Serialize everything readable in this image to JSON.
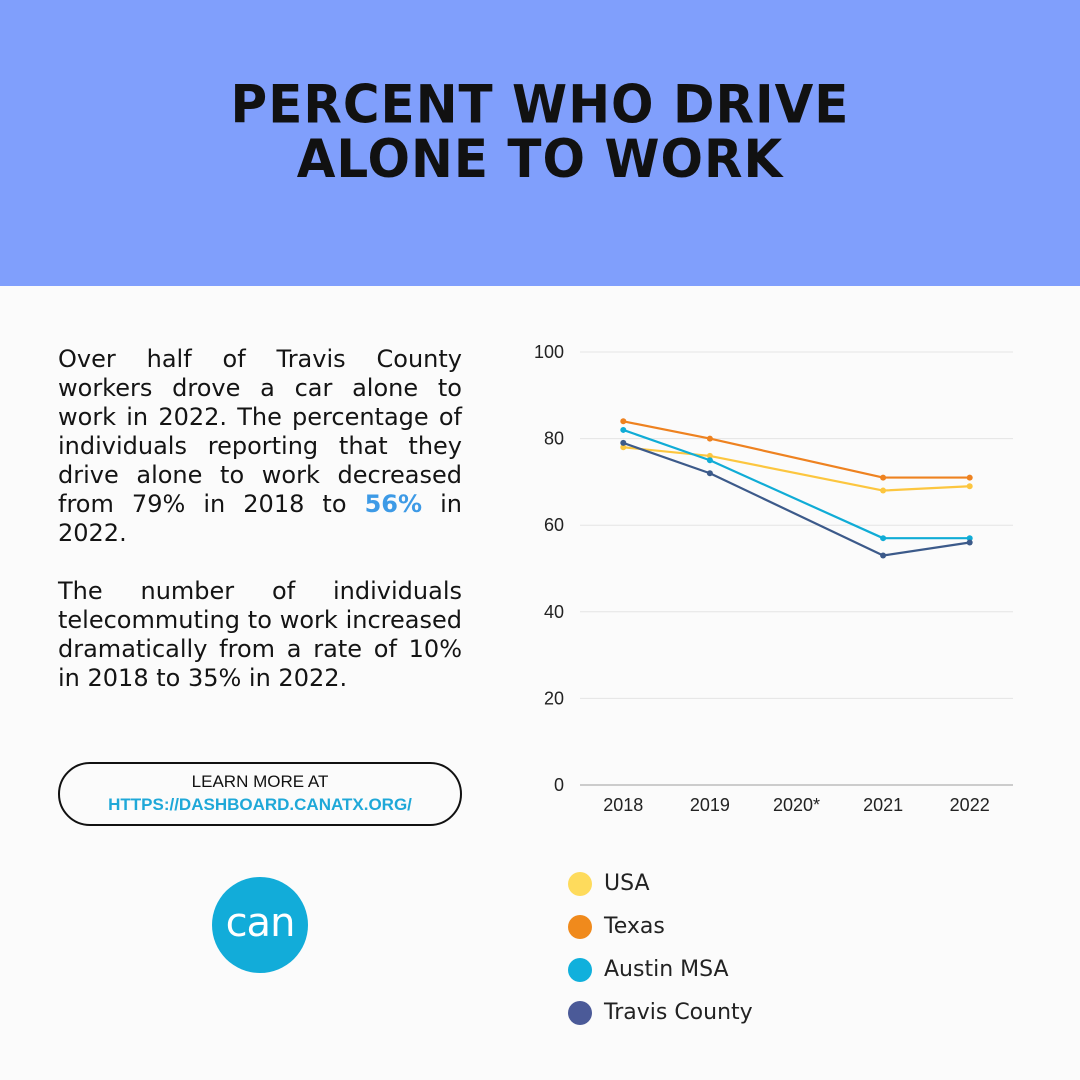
{
  "header": {
    "title_line1": "PERCENT WHO DRIVE",
    "title_line2": "ALONE TO WORK",
    "bg_color": "#809ffc"
  },
  "body": {
    "para1_before": "Over half of Travis County workers drove a car alone to work in 2022. The percentage of individuals reporting that they drive alone to work decreased from 79% in 2018 to ",
    "para1_highlight": "56%",
    "para1_after": " in 2022.",
    "para2": "The number of individuals telecommuting to work increased dramatically from a rate of 10% in 2018 to 35%  in 2022."
  },
  "link_button": {
    "label": "LEARN MORE AT",
    "url_text": "HTTPS://DASHBOARD.CANATX.ORG/"
  },
  "logo": {
    "text": "can",
    "color": "#12acd9"
  },
  "chart_data": {
    "type": "line",
    "title": "",
    "xlabel": "",
    "ylabel": "",
    "categories": [
      "2018",
      "2019",
      "2020*",
      "2021",
      "2022"
    ],
    "ylim": [
      0,
      100
    ],
    "yticks": [
      0,
      20,
      40,
      60,
      80,
      100
    ],
    "grid": true,
    "legend_position": "bottom",
    "series": [
      {
        "name": "USA",
        "color": "#fcc63f",
        "values": [
          78,
          76,
          null,
          68,
          69
        ]
      },
      {
        "name": "Texas",
        "color": "#ee8220",
        "values": [
          84,
          80,
          null,
          71,
          71
        ]
      },
      {
        "name": "Austin MSA",
        "color": "#10acd6",
        "values": [
          82,
          75,
          null,
          57,
          57
        ]
      },
      {
        "name": "Travis County",
        "color": "#3c5a8a",
        "values": [
          79,
          72,
          null,
          53,
          56
        ]
      }
    ],
    "legend_colors": [
      "#fedb5c",
      "#f08a1c",
      "#10b0dc",
      "#4b5a98"
    ]
  }
}
